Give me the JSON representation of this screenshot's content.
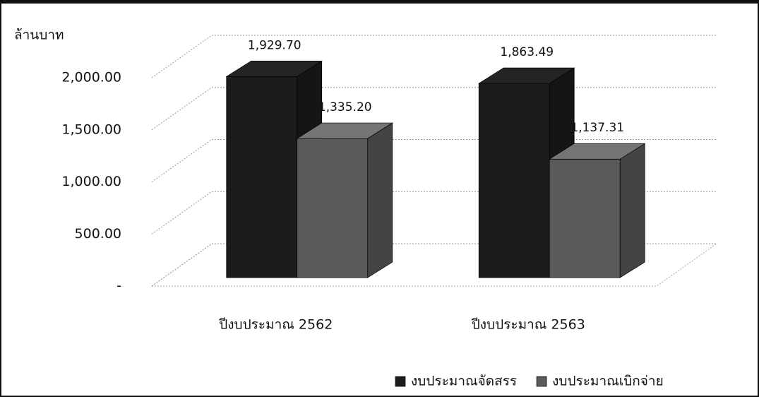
{
  "chart_data": {
    "type": "bar3d",
    "y_label": "ล้านบาท",
    "categories": [
      "ปีงบประมาณ 2562",
      "ปีงบประมาณ 2563"
    ],
    "series": [
      {
        "name": "งบประมาณจัดสรร",
        "color": "#1c1c1c",
        "values": [
          1929.7,
          1863.49
        ],
        "value_labels": [
          "1,929.70",
          "1,863.49"
        ]
      },
      {
        "name": "งบประมาณเบิกจ่าย",
        "color": "#5a5a5a",
        "values": [
          1335.2,
          1137.31
        ],
        "value_labels": [
          "1,335.20",
          "1,137.31"
        ]
      }
    ],
    "ylim": [
      0,
      2000
    ],
    "yticks": [
      {
        "value": 0,
        "label": "-"
      },
      {
        "value": 500,
        "label": "500.00"
      },
      {
        "value": 1000,
        "label": "1,000.00"
      },
      {
        "value": 1500,
        "label": "1,500.00"
      },
      {
        "value": 2000,
        "label": "2,000.00"
      }
    ],
    "grid": true
  }
}
